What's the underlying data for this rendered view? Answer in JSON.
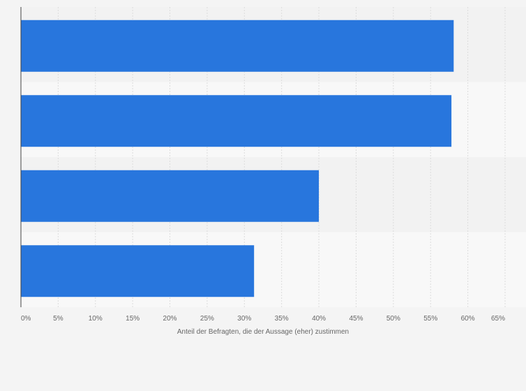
{
  "chart_data": {
    "type": "bar",
    "orientation": "horizontal",
    "categories": [
      "",
      "",
      "",
      ""
    ],
    "values": [
      58.1,
      57.8,
      40.0,
      31.3
    ],
    "xlim": [
      0,
      65
    ],
    "ticks": [
      0,
      5,
      10,
      15,
      20,
      25,
      30,
      35,
      40,
      45,
      50,
      55,
      60,
      65
    ],
    "tick_labels": [
      "0%",
      "5%",
      "10%",
      "15%",
      "20%",
      "25%",
      "30%",
      "35%",
      "40%",
      "45%",
      "50%",
      "55%",
      "60%",
      "65%"
    ],
    "xlabel": "Anteil der Befragten, die der Aussage (eher) zustimmen",
    "ylabel": "",
    "title": "",
    "grid": true,
    "legend": "none"
  },
  "colors": {
    "bar": "#2876dd",
    "band_dark": "#f2f2f2",
    "band_light": "#f8f8f8",
    "grid": "#dcdcdc",
    "axis": "#444444",
    "text": "#666666",
    "background": "#f4f4f4"
  }
}
